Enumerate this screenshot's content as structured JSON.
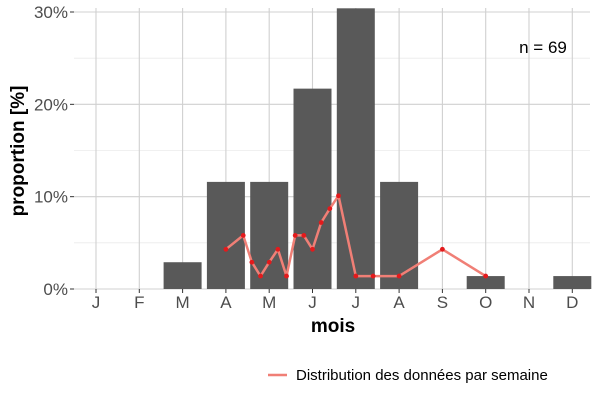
{
  "chart_data": {
    "type": "bar",
    "categories": [
      "J",
      "F",
      "M",
      "A",
      "M",
      "J",
      "J",
      "A",
      "S",
      "O",
      "N",
      "D"
    ],
    "ylabel": "proportion [%]",
    "xlabel": "mois",
    "ylim": [
      0,
      30
    ],
    "y_ticks": [
      "0%",
      "10%",
      "20%",
      "30%"
    ],
    "grid": true,
    "bar_series": {
      "values": [
        0,
        0,
        2.9,
        11.6,
        11.6,
        21.7,
        30.4,
        11.6,
        0,
        1.4,
        0,
        1.4
      ],
      "color": "#595959"
    },
    "line_series": {
      "name": "Distribution des données par semaine",
      "color": "#f07f76",
      "point_color": "#e31a1c",
      "x": [
        4.0,
        4.4,
        4.6,
        4.8,
        5.0,
        5.2,
        5.4,
        5.6,
        5.8,
        6.0,
        6.2,
        6.4,
        6.6,
        7.0,
        7.4,
        8.0,
        9.0,
        10.0
      ],
      "y": [
        4.3,
        5.8,
        2.9,
        1.4,
        2.9,
        4.3,
        1.4,
        5.8,
        5.8,
        4.3,
        7.2,
        8.7,
        10.1,
        1.4,
        1.4,
        1.4,
        4.3,
        1.4
      ]
    },
    "annotation": "n = 69",
    "legend_position": "bottom-right"
  }
}
